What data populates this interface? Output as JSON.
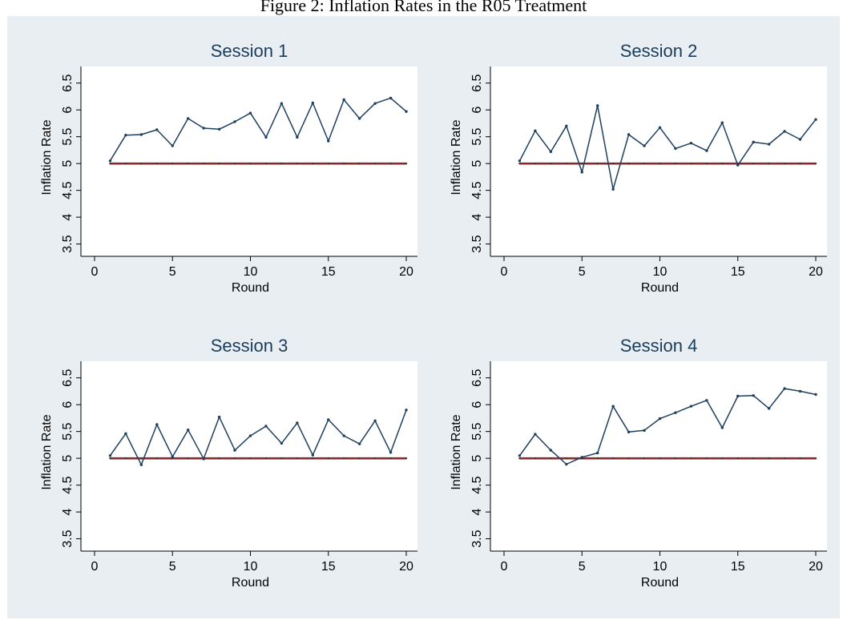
{
  "figure": {
    "caption": "Figure 2: Inflation Rates in the R05 Treatment"
  },
  "chart_data": [
    {
      "type": "line",
      "title": "Session 1",
      "xlabel": "Round",
      "ylabel": "Inflation Rate",
      "xlim": [
        0,
        20
      ],
      "ylim": [
        3.3,
        6.6
      ],
      "x_ticks": [
        "0",
        "5",
        "10",
        "15",
        "20"
      ],
      "y_ticks": [
        "3.5",
        "4",
        "4.5",
        "5",
        "5.5",
        "6",
        "6.5"
      ],
      "grid": false,
      "series": [
        {
          "color": "#1f3f5f",
          "x": [
            1,
            2,
            3,
            4,
            5,
            6,
            7,
            8,
            9,
            10,
            11,
            12,
            13,
            14,
            15,
            16,
            17,
            18,
            19,
            20
          ],
          "values": [
            5.05,
            5.53,
            5.54,
            5.63,
            5.33,
            5.84,
            5.66,
            5.64,
            5.78,
            5.94,
            5.49,
            6.12,
            5.49,
            6.13,
            5.42,
            6.19,
            5.84,
            6.12,
            6.22,
            5.97
          ]
        },
        {
          "color": "#8b2a2a",
          "x": [
            1,
            2,
            3,
            4,
            5,
            6,
            7,
            8,
            9,
            10,
            11,
            12,
            13,
            14,
            15,
            16,
            17,
            18,
            19,
            20
          ],
          "values": [
            5,
            5,
            5,
            5,
            5,
            5,
            5,
            5,
            5,
            5,
            5,
            5,
            5,
            5,
            5,
            5,
            5,
            5,
            5,
            5
          ]
        }
      ]
    },
    {
      "type": "line",
      "title": "Session 2",
      "xlabel": "Round",
      "ylabel": "Inflation Rate",
      "xlim": [
        0,
        20
      ],
      "ylim": [
        3.3,
        6.6
      ],
      "x_ticks": [
        "0",
        "5",
        "10",
        "15",
        "20"
      ],
      "y_ticks": [
        "3.5",
        "4",
        "4.5",
        "5",
        "5.5",
        "6",
        "6.5"
      ],
      "grid": false,
      "series": [
        {
          "color": "#1f3f5f",
          "x": [
            1,
            2,
            3,
            4,
            5,
            6,
            7,
            8,
            9,
            10,
            11,
            12,
            13,
            14,
            15,
            16,
            17,
            18,
            19,
            20
          ],
          "values": [
            5.05,
            5.61,
            5.22,
            5.7,
            4.84,
            6.08,
            4.52,
            5.54,
            5.33,
            5.67,
            5.28,
            5.38,
            5.24,
            5.76,
            4.97,
            5.4,
            5.36,
            5.6,
            5.45,
            5.82
          ]
        },
        {
          "color": "#8b2a2a",
          "x": [
            1,
            2,
            3,
            4,
            5,
            6,
            7,
            8,
            9,
            10,
            11,
            12,
            13,
            14,
            15,
            16,
            17,
            18,
            19,
            20
          ],
          "values": [
            5,
            5,
            5,
            5,
            5,
            5,
            5,
            5,
            5,
            5,
            5,
            5,
            5,
            5,
            5,
            5,
            5,
            5,
            5,
            5
          ]
        }
      ]
    },
    {
      "type": "line",
      "title": "Session 3",
      "xlabel": "Round",
      "ylabel": "Inflation Rate",
      "xlim": [
        0,
        20
      ],
      "ylim": [
        3.3,
        6.6
      ],
      "x_ticks": [
        "0",
        "5",
        "10",
        "15",
        "20"
      ],
      "y_ticks": [
        "3.5",
        "4",
        "4.5",
        "5",
        "5.5",
        "6",
        "6.5"
      ],
      "grid": false,
      "series": [
        {
          "color": "#1f3f5f",
          "x": [
            1,
            2,
            3,
            4,
            5,
            6,
            7,
            8,
            9,
            10,
            11,
            12,
            13,
            14,
            15,
            16,
            17,
            18,
            19,
            20
          ],
          "values": [
            5.05,
            5.46,
            4.88,
            5.63,
            5.03,
            5.53,
            4.99,
            5.77,
            5.15,
            5.42,
            5.6,
            5.28,
            5.66,
            5.06,
            5.72,
            5.42,
            5.27,
            5.7,
            5.11,
            5.9
          ]
        },
        {
          "color": "#8b2a2a",
          "x": [
            1,
            2,
            3,
            4,
            5,
            6,
            7,
            8,
            9,
            10,
            11,
            12,
            13,
            14,
            15,
            16,
            17,
            18,
            19,
            20
          ],
          "values": [
            5,
            5,
            5,
            5,
            5,
            5,
            5,
            5,
            5,
            5,
            5,
            5,
            5,
            5,
            5,
            5,
            5,
            5,
            5,
            5
          ]
        }
      ]
    },
    {
      "type": "line",
      "title": "Session 4",
      "xlabel": "Round",
      "ylabel": "Inflation Rate",
      "xlim": [
        0,
        20
      ],
      "ylim": [
        3.3,
        6.6
      ],
      "x_ticks": [
        "0",
        "5",
        "10",
        "15",
        "20"
      ],
      "y_ticks": [
        "3.5",
        "4",
        "4.5",
        "5",
        "5.5",
        "6",
        "6.5"
      ],
      "grid": false,
      "series": [
        {
          "color": "#1f3f5f",
          "x": [
            1,
            2,
            3,
            4,
            5,
            6,
            7,
            8,
            9,
            10,
            11,
            12,
            13,
            14,
            15,
            16,
            17,
            18,
            19,
            20
          ],
          "values": [
            5.05,
            5.45,
            5.15,
            4.89,
            5.02,
            5.1,
            5.97,
            5.49,
            5.52,
            5.74,
            5.85,
            5.97,
            6.08,
            5.57,
            6.16,
            6.17,
            5.93,
            6.3,
            6.25,
            6.19
          ]
        },
        {
          "color": "#8b2a2a",
          "x": [
            1,
            2,
            3,
            4,
            5,
            6,
            7,
            8,
            9,
            10,
            11,
            12,
            13,
            14,
            15,
            16,
            17,
            18,
            19,
            20
          ],
          "values": [
            5,
            5,
            5,
            5,
            5,
            5,
            5,
            5,
            5,
            5,
            5,
            5,
            5,
            5,
            5,
            5,
            5,
            5,
            5,
            5
          ]
        }
      ]
    }
  ]
}
